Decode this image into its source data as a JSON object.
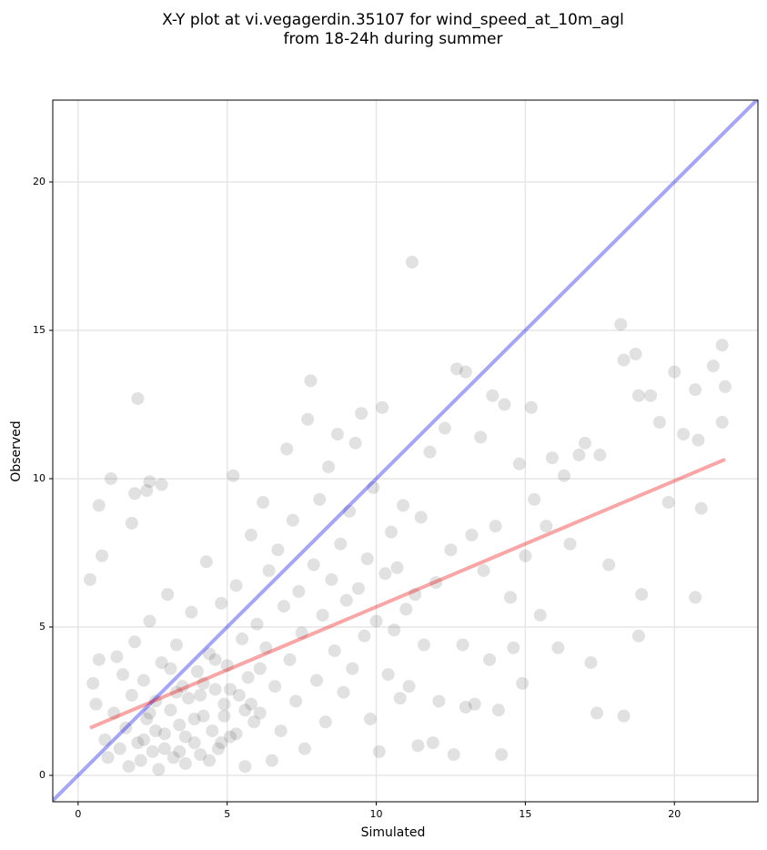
{
  "chart_data": {
    "type": "scatter",
    "title": [
      "X-Y plot at vi.vegagerdin.35107 for wind_speed_at_10m_agl",
      "from 18-24h during summer"
    ],
    "x_label": "Simulated",
    "y_label": "Observed",
    "xlim": [
      -0.85,
      22.8
    ],
    "ylim": [
      -0.89,
      22.76
    ],
    "xticks": [
      0,
      5,
      10,
      15,
      20
    ],
    "yticks": [
      0,
      5,
      10,
      15,
      20
    ],
    "grid": true,
    "color": "#333333",
    "x": [
      0.4,
      0.7,
      0.8,
      1.1,
      2,
      2.3,
      2.4,
      2.8,
      1.8,
      1.9,
      0.5,
      0.6,
      0.7,
      0.9,
      1,
      1.2,
      1.3,
      1.4,
      1.5,
      1.6,
      1.7,
      1.8,
      1.9,
      2,
      2.1,
      2.2,
      2.3,
      2.4,
      2.5,
      2.6,
      2.7,
      2.8,
      2.9,
      3,
      3.1,
      3.2,
      3.3,
      3.4,
      3.5,
      3.6,
      3.7,
      3.8,
      3.9,
      4,
      4.1,
      4.2,
      4.3,
      4.4,
      4.5,
      4.6,
      4.7,
      4.8,
      4.9,
      5,
      5.1,
      5.2,
      5.3,
      5.4,
      5.5,
      5.6,
      5.7,
      5.8,
      5.9,
      6,
      6.1,
      6.2,
      6.3,
      6.4,
      6.5,
      6.6,
      6.7,
      6.8,
      6.9,
      7,
      7.1,
      7.2,
      7.3,
      7.4,
      7.5,
      7.6,
      7.7,
      7.8,
      7.9,
      8,
      8.1,
      8.2,
      8.3,
      8.4,
      8.5,
      8.6,
      8.7,
      8.8,
      8.9,
      9,
      9.1,
      9.2,
      9.3,
      9.4,
      9.5,
      9.6,
      9.7,
      9.8,
      9.9,
      10,
      10.1,
      10.2,
      10.3,
      10.4,
      10.5,
      10.6,
      10.7,
      10.8,
      10.9,
      11,
      11.1,
      11.2,
      11.3,
      11.4,
      11.5,
      11.6,
      11.8,
      12,
      12.1,
      12.3,
      12.5,
      12.6,
      12.7,
      12.9,
      13,
      13.2,
      13.3,
      13.5,
      13.6,
      13.8,
      13.9,
      14,
      14.2,
      14.3,
      14.5,
      14.6,
      14.8,
      14.9,
      15,
      15.2,
      15.3,
      15.5,
      15.7,
      15.9,
      16.1,
      16.3,
      16.5,
      16.8,
      17,
      17.2,
      17.4,
      17.5,
      17.8,
      18.2,
      18.3,
      18.3,
      18.7,
      18.8,
      18.9,
      18.8,
      19.2,
      19.5,
      19.8,
      20,
      20.3,
      20.7,
      20.7,
      20.9,
      21.3,
      21.6,
      21.7,
      21.6,
      20.8,
      13,
      14.1,
      11.9,
      2.2,
      2.9,
      3.3,
      3.9,
      4.4,
      4.9,
      5.3,
      5.8,
      3.1,
      2.6,
      4.1,
      4.6,
      5.1,
      5.6,
      6.1,
      2.4,
      3.6,
      4.8,
      3.4,
      4.2
    ],
    "values": [
      6.6,
      9.1,
      7.4,
      10,
      12.7,
      9.6,
      9.9,
      9.8,
      8.5,
      9.5,
      3.1,
      2.4,
      3.9,
      1.2,
      0.6,
      2.1,
      4,
      0.9,
      3.4,
      1.6,
      0.3,
      2.7,
      4.5,
      1.1,
      0.5,
      3.2,
      1.9,
      5.2,
      0.8,
      2.5,
      0.2,
      3.8,
      1.4,
      6.1,
      2.2,
      0.6,
      4.4,
      1.7,
      3,
      0.4,
      2.6,
      5.5,
      1.1,
      3.5,
      0.7,
      2,
      7.2,
      4.1,
      1.5,
      2.9,
      0.9,
      5.8,
      2.4,
      3.7,
      1.3,
      10.1,
      6.4,
      2.7,
      4.6,
      0.3,
      3.3,
      8.1,
      1.8,
      5.1,
      2.1,
      9.2,
      4.3,
      6.9,
      0.5,
      3,
      7.6,
      1.5,
      5.7,
      11,
      3.9,
      8.6,
      2.5,
      6.2,
      4.8,
      0.9,
      12,
      13.3,
      7.1,
      3.2,
      9.3,
      5.4,
      1.8,
      10.4,
      6.6,
      4.2,
      11.5,
      7.8,
      2.8,
      5.9,
      8.9,
      3.6,
      11.2,
      6.3,
      12.2,
      4.7,
      7.3,
      1.9,
      9.7,
      5.2,
      0.8,
      12.4,
      6.8,
      3.4,
      8.2,
      4.9,
      7,
      2.6,
      9.1,
      5.6,
      3,
      17.3,
      6.1,
      1,
      8.7,
      4.4,
      10.9,
      6.5,
      2.5,
      11.7,
      7.6,
      0.7,
      13.7,
      4.4,
      13.6,
      8.1,
      2.4,
      11.4,
      6.9,
      3.9,
      12.8,
      8.4,
      0.7,
      12.5,
      6,
      4.3,
      10.5,
      3.1,
      7.4,
      12.4,
      9.3,
      5.4,
      8.4,
      10.7,
      4.3,
      10.1,
      7.8,
      10.8,
      11.2,
      3.8,
      2.1,
      10.8,
      7.1,
      15.2,
      14,
      2,
      14.2,
      12.8,
      6.1,
      4.7,
      12.8,
      11.9,
      9.2,
      13.6,
      11.5,
      6,
      13,
      9,
      13.8,
      14.5,
      13.1,
      11.9,
      11.3,
      2.3,
      2.2,
      1.1,
      1.2,
      0.9,
      2.8,
      1.9,
      0.5,
      2,
      1.4,
      2.4,
      3.6,
      1.5,
      2.7,
      3.9,
      2.9,
      2.2,
      3.6,
      2.1,
      1.3,
      1.1,
      0.8,
      3.1
    ],
    "lines": [
      {
        "color": "#0000ee",
        "x": [
          -0.85,
          22.8
        ],
        "values": [
          -0.85,
          22.8
        ]
      },
      {
        "color": "#ee0000",
        "x": [
          0.4,
          21.7
        ],
        "values": [
          1.6,
          10.65
        ]
      }
    ]
  }
}
